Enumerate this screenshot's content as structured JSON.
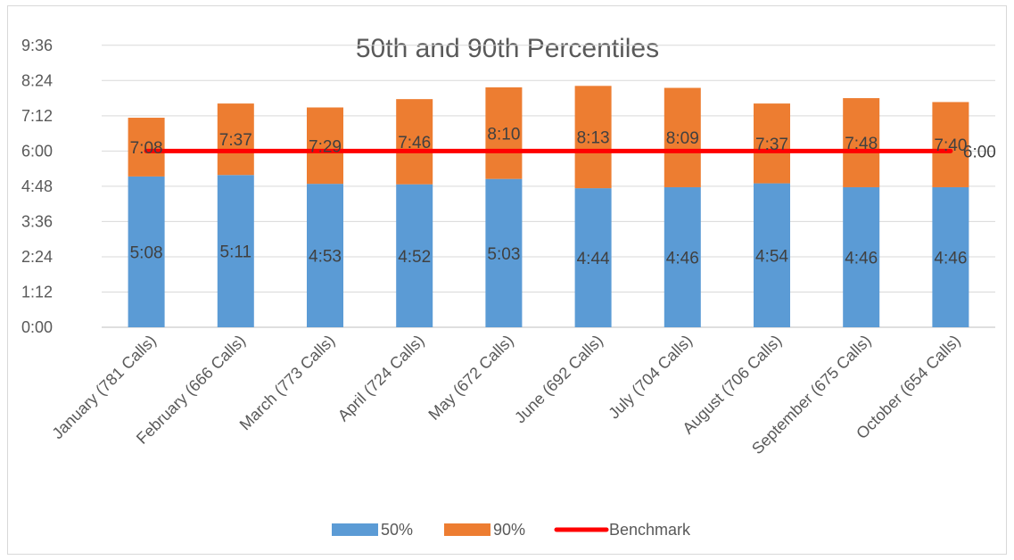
{
  "chart_data": {
    "type": "bar",
    "stacked": true,
    "title": "50th and 90th Percentiles",
    "categories": [
      "January (781 Calls)",
      "February (666 Calls)",
      "March (773 Calls)",
      "April (724 Calls)",
      "May (672 Calls)",
      "June (692 Calls)",
      "July (704 Calls)",
      "August (706 Calls)",
      "September (675 Calls)",
      "October (654 Calls)"
    ],
    "y_ticks": [
      "0:00",
      "1:12",
      "2:24",
      "3:36",
      "4:48",
      "6:00",
      "7:12",
      "8:24",
      "9:36"
    ],
    "ylim": [
      0,
      10.2
    ],
    "y_unit": "minutes",
    "grid": true,
    "legend_position": "bottom",
    "series": [
      {
        "name": "50%",
        "color": "#5b9bd5",
        "values": [
          5.133,
          5.183,
          4.883,
          4.867,
          5.05,
          4.733,
          4.767,
          4.9,
          4.767,
          4.767
        ],
        "labels": [
          "5:08",
          "5:11",
          "4:53",
          "4:52",
          "5:03",
          "4:44",
          "4:46",
          "4:54",
          "4:46",
          "4:46"
        ]
      },
      {
        "name": "90%",
        "color": "#ed7d31",
        "totals": [
          7.133,
          7.617,
          7.483,
          7.767,
          8.167,
          8.217,
          8.15,
          7.617,
          7.8,
          7.667
        ],
        "labels": [
          "7:08",
          "7:37",
          "7:29",
          "7:46",
          "8:10",
          "8:13",
          "8:09",
          "7:37",
          "7:48",
          "7:40"
        ]
      },
      {
        "name": "Benchmark",
        "type": "line",
        "color": "#ff0000",
        "value": 6.0,
        "label": "6:00"
      }
    ]
  }
}
